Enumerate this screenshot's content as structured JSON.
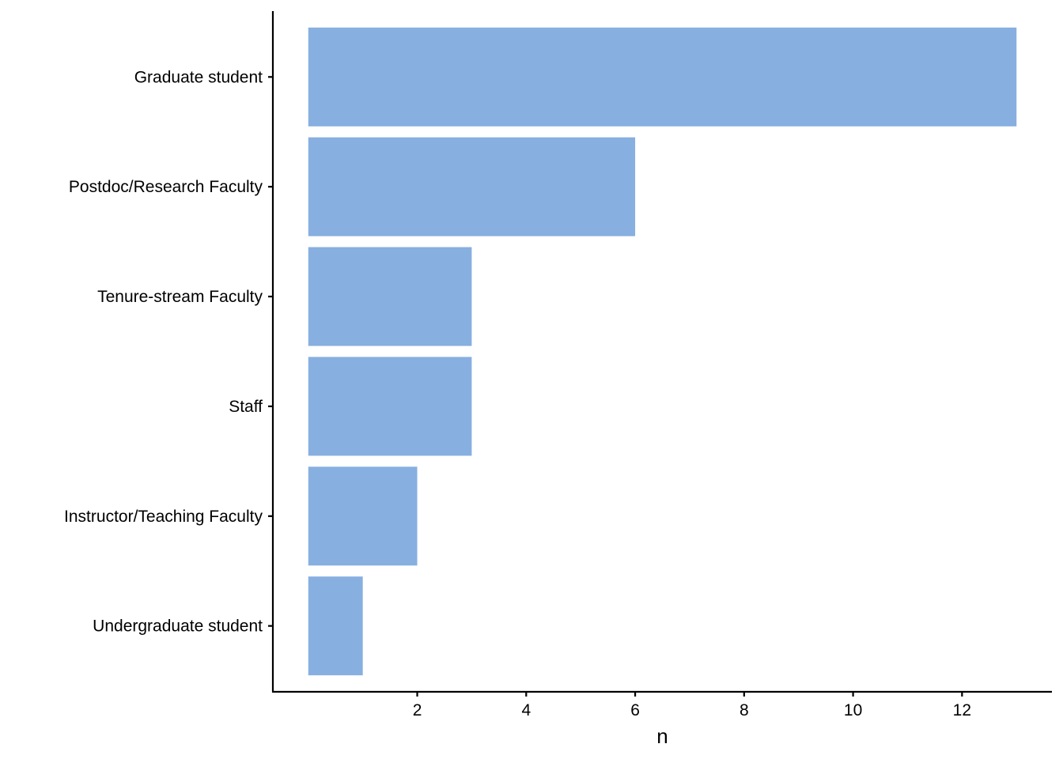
{
  "chart_data": {
    "type": "bar",
    "orientation": "horizontal",
    "categories": [
      "Graduate student",
      "Postdoc/Research Faculty",
      "Tenure-stream Faculty",
      "Staff",
      "Instructor/Teaching Faculty",
      "Undergraduate student"
    ],
    "values": [
      13,
      6,
      3,
      3,
      2,
      1
    ],
    "title": "",
    "xlabel": "n",
    "ylabel": "",
    "xlim": [
      -0.65,
      13.65
    ],
    "xticks": [
      2,
      4,
      6,
      8,
      10,
      12
    ],
    "grid": false,
    "legend": "none",
    "bar_color": "#87AFE0",
    "axis_color": "#000000"
  }
}
